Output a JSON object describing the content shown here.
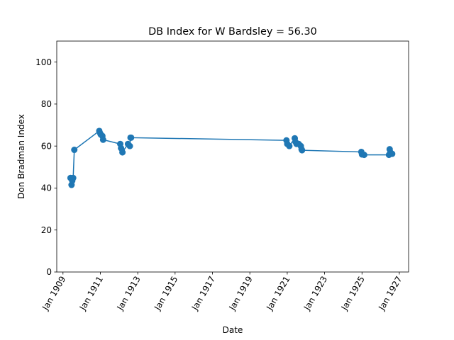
{
  "chart_data": {
    "type": "line",
    "title": "DB Index for W Bardsley = 56.30",
    "xlabel": "Date",
    "ylabel": "Don Bradman Index",
    "xlim": [
      "1908-09-01",
      "1927-07-01"
    ],
    "ylim": [
      0,
      110
    ],
    "yticks": [
      0,
      20,
      40,
      60,
      80,
      100
    ],
    "xticks": [
      {
        "date": "1909-01-01",
        "label": "Jan 1909"
      },
      {
        "date": "1911-01-01",
        "label": "Jan 1911"
      },
      {
        "date": "1913-01-01",
        "label": "Jan 1913"
      },
      {
        "date": "1915-01-01",
        "label": "Jan 1915"
      },
      {
        "date": "1917-01-01",
        "label": "Jan 1917"
      },
      {
        "date": "1919-01-01",
        "label": "Jan 1919"
      },
      {
        "date": "1921-01-01",
        "label": "Jan 1921"
      },
      {
        "date": "1923-01-01",
        "label": "Jan 1923"
      },
      {
        "date": "1925-01-01",
        "label": "Jan 1925"
      },
      {
        "date": "1927-01-01",
        "label": "Jan 1927"
      }
    ],
    "grid": false,
    "color": "#1f77b4",
    "series": [
      {
        "points": [
          {
            "x": "1909-05-28",
            "y": 44.8
          },
          {
            "x": "1909-06-17",
            "y": 41.5
          },
          {
            "x": "1909-07-01",
            "y": 43.5
          },
          {
            "x": "1909-07-19",
            "y": 44.8
          },
          {
            "x": "1909-08-10",
            "y": 58.2
          },
          {
            "x": "1910-12-11",
            "y": 67.2
          },
          {
            "x": "1910-12-31",
            "y": 66.0
          },
          {
            "x": "1911-01-09",
            "y": 65.5
          },
          {
            "x": "1911-02-10",
            "y": 64.8
          },
          {
            "x": "1911-02-24",
            "y": 63.0
          },
          {
            "x": "1912-01-25",
            "y": 61.0
          },
          {
            "x": "1912-02-10",
            "y": 59.0
          },
          {
            "x": "1912-03-08",
            "y": 57.0
          },
          {
            "x": "1912-06-24",
            "y": 61.0
          },
          {
            "x": "1912-07-31",
            "y": 60.0
          },
          {
            "x": "1912-08-13",
            "y": 64.0
          },
          {
            "x": "1912-08-24",
            "y": 64.0
          },
          {
            "x": "1920-12-17",
            "y": 62.7
          },
          {
            "x": "1921-01-01",
            "y": 61.0
          },
          {
            "x": "1921-02-11",
            "y": 60.0
          },
          {
            "x": "1921-05-28",
            "y": 63.7
          },
          {
            "x": "1921-06-11",
            "y": 62.0
          },
          {
            "x": "1921-07-02",
            "y": 61.0
          },
          {
            "x": "1921-08-13",
            "y": 61.0
          },
          {
            "x": "1921-09-24",
            "y": 60.0
          },
          {
            "x": "1921-10-08",
            "y": 58.5
          },
          {
            "x": "1921-10-17",
            "y": 58.0
          },
          {
            "x": "1924-12-19",
            "y": 57.2
          },
          {
            "x": "1925-01-01",
            "y": 56.0
          },
          {
            "x": "1925-02-13",
            "y": 55.8
          },
          {
            "x": "1926-06-12",
            "y": 55.8
          },
          {
            "x": "1926-06-26",
            "y": 58.5
          },
          {
            "x": "1926-07-10",
            "y": 57.0
          },
          {
            "x": "1926-07-24",
            "y": 56.5
          },
          {
            "x": "1926-08-14",
            "y": 56.3
          }
        ]
      }
    ]
  }
}
